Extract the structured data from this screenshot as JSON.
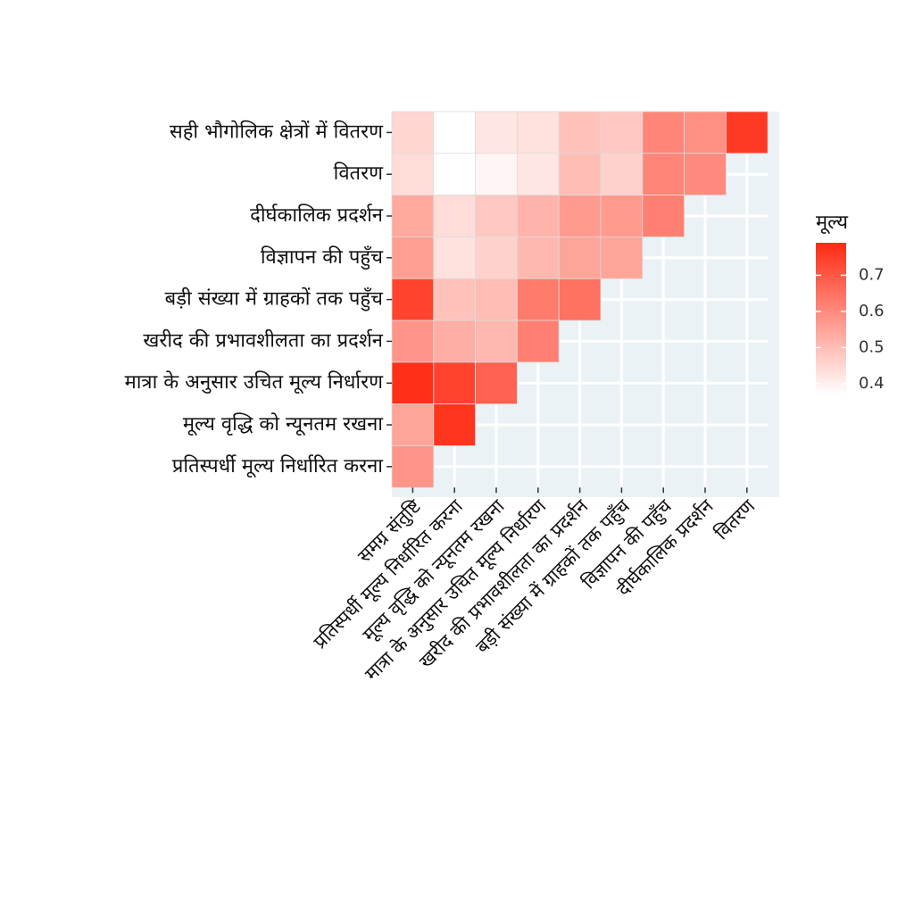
{
  "chart_data": {
    "type": "heatmap",
    "title": "",
    "xlabel": "",
    "ylabel": "",
    "x_categories": [
      "समग्र संतुष्टि",
      "प्रतिस्पर्धी मूल्य निर्धारित करना",
      "मूल्य वृद्धि को न्यूनतम रखना",
      "मात्रा के अनुसार उचित मूल्य निर्धारण",
      "खरीद की प्रभावशीलता का प्रदर्शन",
      "बड़ी संख्या में ग्राहकों तक पहुँच",
      "विज्ञापन की पहुँच",
      "दीर्घकालिक प्रदर्शन",
      "वितरण"
    ],
    "y_categories": [
      "सही भौगोलिक क्षेत्रों में वितरण",
      "वितरण",
      "दीर्घकालिक प्रदर्शन",
      "विज्ञापन की पहुँच",
      "बड़ी संख्या में ग्राहकों तक पहुँच",
      "खरीद की प्रभावशीलता का प्रदर्शन",
      "मात्रा के अनुसार उचित मूल्य निर्धारण",
      "मूल्य वृद्धि को न्यूनतम रखना",
      "प्रतिस्पर्धी मूल्य निर्धारित करना"
    ],
    "values": [
      [
        0.45,
        0.37,
        0.42,
        0.43,
        0.49,
        0.48,
        0.61,
        0.59,
        0.76
      ],
      [
        0.44,
        0.37,
        0.39,
        0.42,
        0.5,
        0.46,
        0.61,
        0.6,
        null
      ],
      [
        0.54,
        0.44,
        0.48,
        0.52,
        0.57,
        0.57,
        0.62,
        null,
        null
      ],
      [
        0.56,
        0.43,
        0.46,
        0.51,
        0.55,
        0.55,
        null,
        null,
        null
      ],
      [
        0.74,
        0.49,
        0.5,
        0.63,
        0.65,
        null,
        null,
        null,
        null
      ],
      [
        0.58,
        0.53,
        0.51,
        0.62,
        null,
        null,
        null,
        null,
        null
      ],
      [
        0.78,
        0.74,
        0.68,
        null,
        null,
        null,
        null,
        null,
        null
      ],
      [
        0.55,
        0.77,
        null,
        null,
        null,
        null,
        null,
        null,
        null
      ],
      [
        0.58,
        null,
        null,
        null,
        null,
        null,
        null,
        null,
        null
      ]
    ],
    "color_scale": {
      "low": "#ffffff",
      "high": "#ff2a12",
      "min": 0.37,
      "max": 0.79
    },
    "panel_background": "#ebf2f6",
    "legend": {
      "title": "मूल्य",
      "position": "right",
      "ticks": [
        "0.4",
        "0.5",
        "0.6",
        "0.7"
      ],
      "tick_values": [
        0.4,
        0.5,
        0.6,
        0.7
      ]
    },
    "grid": true
  }
}
